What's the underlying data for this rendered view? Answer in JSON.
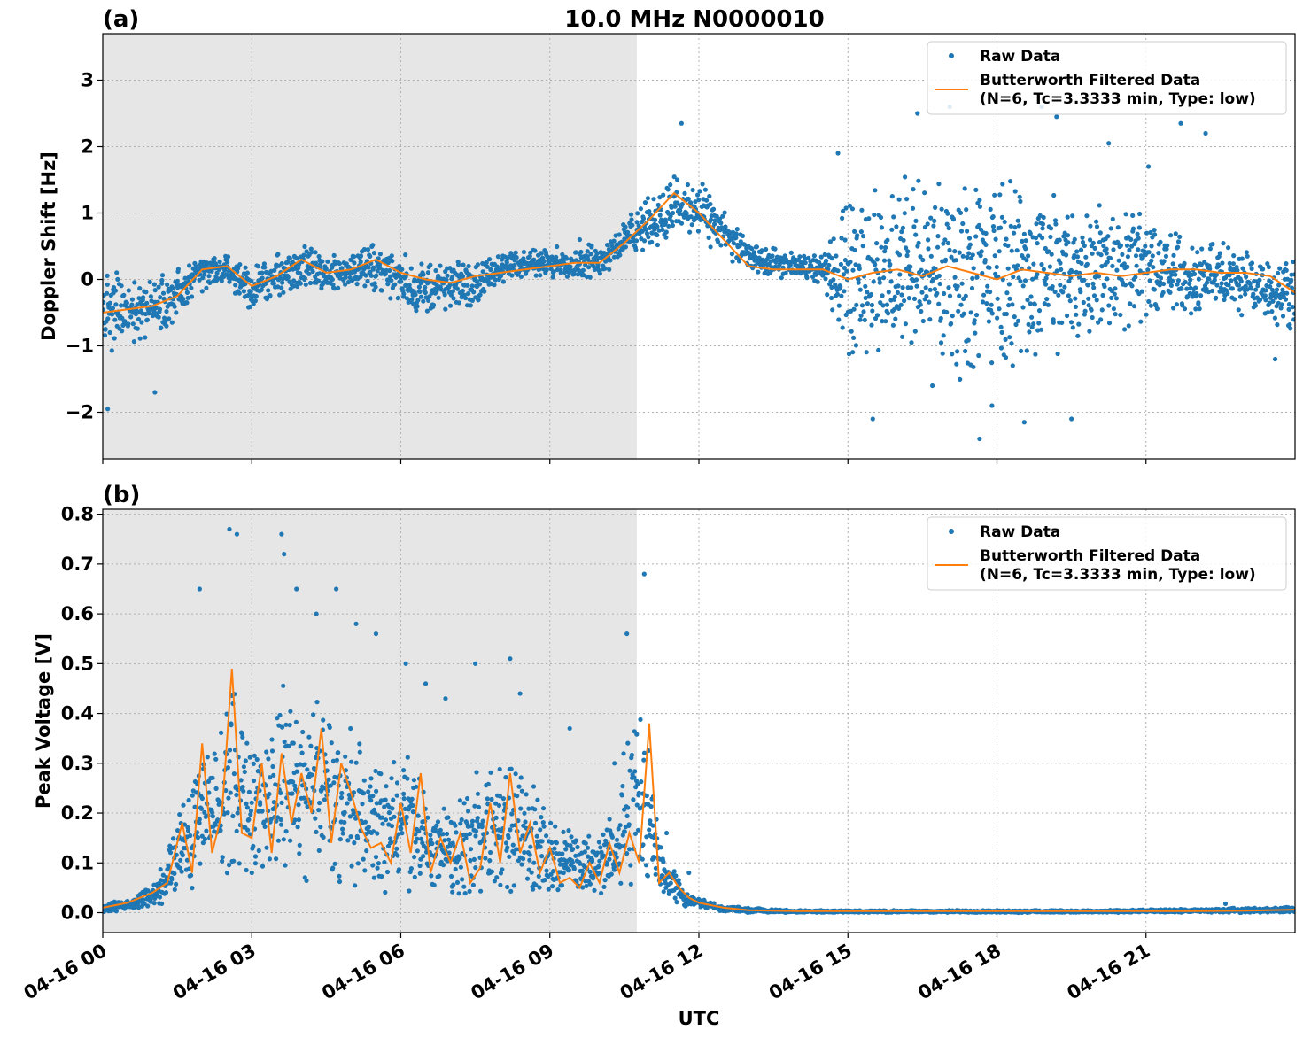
{
  "figure": {
    "title": "10.0 MHz N0000010",
    "xlabel": "UTC",
    "x_tick_labels": [
      "04-16 00",
      "04-16 03",
      "04-16 06",
      "04-16 09",
      "04-16 12",
      "04-16 15",
      "04-16 18",
      "04-16 21"
    ],
    "colors": {
      "raw": "#1f77b4",
      "filtered": "#ff7f0e",
      "night_shade": "#e6e6e6",
      "grid": "#b0b0b0"
    }
  },
  "chart_data": [
    {
      "type": "scatter",
      "panel_label": "(a)",
      "ylabel": "Doppler Shift [Hz]",
      "xlim_hours": [
        0,
        24
      ],
      "ylim": [
        -2.7,
        3.7
      ],
      "y_ticks": [
        -2,
        -1,
        0,
        1,
        2,
        3
      ],
      "y_tick_labels": [
        "−2",
        "−1",
        "0",
        "1",
        "2",
        "3"
      ],
      "grid": true,
      "legend_position": "top-right",
      "shaded_region_hours": [
        0,
        10.75
      ],
      "series": [
        {
          "name": "Raw Data",
          "kind": "scatter",
          "band_x_hours": [
            0,
            0.5,
            1,
            1.5,
            2,
            2.5,
            3,
            3.5,
            4,
            4.5,
            5,
            5.5,
            6,
            6.5,
            7,
            7.5,
            8,
            8.5,
            9,
            9.5,
            10,
            10.5,
            11,
            11.5,
            12,
            12.5,
            13,
            13.5,
            14,
            14.5,
            15,
            15.5,
            16,
            16.5,
            17,
            17.5,
            18,
            18.5,
            19,
            19.5,
            20,
            20.5,
            21,
            21.5,
            22,
            22.5,
            23,
            23.5,
            24
          ],
          "band_low": [
            -1.2,
            -1.0,
            -0.9,
            -0.7,
            -0.2,
            -0.1,
            -0.5,
            -0.3,
            -0.2,
            -0.3,
            -0.1,
            -0.2,
            -0.4,
            -0.6,
            -0.5,
            -0.4,
            -0.1,
            0.0,
            0.0,
            0.0,
            0.0,
            0.3,
            0.4,
            0.6,
            0.6,
            0.3,
            0.1,
            0.0,
            0.0,
            -0.1,
            -1.3,
            -1.2,
            -1.3,
            -1.4,
            -1.5,
            -1.6,
            -1.5,
            -1.4,
            -1.3,
            -1.2,
            -1.0,
            -0.8,
            -0.7,
            -0.6,
            -0.6,
            -0.5,
            -0.6,
            -0.7,
            -0.8
          ],
          "band_high": [
            0.2,
            0.1,
            0.1,
            0.2,
            0.4,
            0.4,
            0.2,
            0.4,
            0.6,
            0.4,
            0.4,
            0.6,
            0.4,
            0.3,
            0.3,
            0.3,
            0.4,
            0.5,
            0.5,
            0.5,
            0.6,
            0.9,
            1.3,
            1.6,
            1.5,
            1.1,
            0.6,
            0.5,
            0.4,
            0.4,
            1.4,
            1.5,
            1.6,
            1.7,
            1.6,
            1.7,
            1.7,
            1.6,
            1.6,
            1.5,
            1.5,
            1.3,
            1.0,
            0.8,
            0.7,
            0.6,
            0.5,
            0.4,
            0.4
          ],
          "points": [
            [
              0.1,
              -1.95
            ],
            [
              1.05,
              -1.7
            ],
            [
              9.6,
              0.6
            ],
            [
              11.65,
              2.35
            ],
            [
              14.8,
              1.9
            ],
            [
              15.5,
              -2.1
            ],
            [
              16.4,
              2.5
            ],
            [
              16.7,
              -1.6
            ],
            [
              17.05,
              2.6
            ],
            [
              17.65,
              -2.4
            ],
            [
              17.9,
              -1.9
            ],
            [
              18.55,
              -2.15
            ],
            [
              18.9,
              2.6
            ],
            [
              19.2,
              2.45
            ],
            [
              19.5,
              -2.1
            ],
            [
              20.25,
              2.05
            ],
            [
              21.05,
              1.7
            ],
            [
              21.7,
              2.35
            ],
            [
              22.2,
              2.2
            ],
            [
              23.6,
              -1.2
            ]
          ]
        },
        {
          "name": "Butterworth Filtered Data\n(N=6, Tc=3.3333 min, Type: low)",
          "kind": "line",
          "x_hours": [
            0,
            0.5,
            1,
            1.5,
            2,
            2.5,
            3,
            3.5,
            4,
            4.5,
            5,
            5.5,
            6,
            6.5,
            7,
            7.5,
            8,
            8.5,
            9,
            9.5,
            10,
            10.5,
            11,
            11.5,
            12,
            12.5,
            13,
            13.5,
            14,
            14.5,
            15,
            15.5,
            16,
            16.5,
            17,
            17.5,
            18,
            18.5,
            19,
            19.5,
            20,
            20.5,
            21,
            21.5,
            22,
            22.5,
            23,
            23.5,
            24
          ],
          "y": [
            -0.5,
            -0.45,
            -0.4,
            -0.25,
            0.15,
            0.2,
            -0.1,
            0.05,
            0.3,
            0.1,
            0.15,
            0.3,
            0.1,
            0.0,
            -0.05,
            0.05,
            0.1,
            0.15,
            0.2,
            0.25,
            0.25,
            0.55,
            0.9,
            1.3,
            1.0,
            0.6,
            0.2,
            0.15,
            0.15,
            0.15,
            0.0,
            0.1,
            0.15,
            0.05,
            0.2,
            0.1,
            0.0,
            0.15,
            0.1,
            0.05,
            0.1,
            0.05,
            0.1,
            0.15,
            0.15,
            0.1,
            0.1,
            0.05,
            -0.2
          ]
        }
      ]
    },
    {
      "type": "scatter",
      "panel_label": "(b)",
      "ylabel": "Peak Voltage [V]",
      "xlim_hours": [
        0,
        24
      ],
      "ylim": [
        -0.04,
        0.81
      ],
      "y_ticks": [
        0.0,
        0.1,
        0.2,
        0.3,
        0.4,
        0.5,
        0.6,
        0.7,
        0.8
      ],
      "y_tick_labels": [
        "0.0",
        "0.1",
        "0.2",
        "0.3",
        "0.4",
        "0.5",
        "0.6",
        "0.7",
        "0.8"
      ],
      "grid": true,
      "legend_position": "top-right",
      "shaded_region_hours": [
        0,
        10.75
      ],
      "series": [
        {
          "name": "Raw Data",
          "kind": "scatter",
          "band_x_hours": [
            0,
            0.5,
            1,
            1.3,
            1.6,
            2.0,
            2.3,
            2.6,
            3.0,
            3.3,
            3.6,
            4.0,
            4.3,
            4.6,
            5.0,
            5.3,
            5.6,
            6.0,
            6.3,
            6.6,
            7.0,
            7.3,
            7.6,
            8.0,
            8.3,
            8.6,
            9.0,
            9.3,
            9.6,
            10.0,
            10.3,
            10.6,
            10.9,
            11.2,
            11.5,
            11.8,
            12.0,
            12.5,
            13.0,
            14.0,
            16.0,
            18.0,
            20.0,
            22.0,
            23.0,
            24.0
          ],
          "band_low": [
            0.0,
            0.0,
            0.01,
            0.02,
            0.03,
            0.05,
            0.06,
            0.07,
            0.06,
            0.07,
            0.05,
            0.06,
            0.06,
            0.05,
            0.05,
            0.04,
            0.04,
            0.03,
            0.03,
            0.03,
            0.02,
            0.02,
            0.02,
            0.02,
            0.02,
            0.02,
            0.02,
            0.02,
            0.02,
            0.03,
            0.03,
            0.04,
            0.05,
            0.03,
            0.02,
            0.01,
            0.01,
            0.0,
            0.0,
            0.0,
            0.0,
            0.0,
            0.0,
            0.0,
            0.0,
            0.0
          ],
          "band_high": [
            0.02,
            0.03,
            0.06,
            0.12,
            0.25,
            0.38,
            0.35,
            0.5,
            0.35,
            0.4,
            0.48,
            0.42,
            0.45,
            0.42,
            0.38,
            0.32,
            0.3,
            0.35,
            0.3,
            0.22,
            0.22,
            0.25,
            0.32,
            0.3,
            0.33,
            0.3,
            0.22,
            0.2,
            0.15,
            0.18,
            0.22,
            0.4,
            0.45,
            0.15,
            0.09,
            0.04,
            0.03,
            0.015,
            0.01,
            0.005,
            0.005,
            0.005,
            0.005,
            0.008,
            0.01,
            0.012
          ],
          "points": [
            [
              1.95,
              0.65
            ],
            [
              2.55,
              0.77
            ],
            [
              2.7,
              0.76
            ],
            [
              3.6,
              0.76
            ],
            [
              3.65,
              0.72
            ],
            [
              3.9,
              0.65
            ],
            [
              4.3,
              0.6
            ],
            [
              4.7,
              0.65
            ],
            [
              5.1,
              0.58
            ],
            [
              5.5,
              0.56
            ],
            [
              6.1,
              0.5
            ],
            [
              6.5,
              0.46
            ],
            [
              6.9,
              0.43
            ],
            [
              7.5,
              0.5
            ],
            [
              8.2,
              0.51
            ],
            [
              8.4,
              0.44
            ],
            [
              9.4,
              0.37
            ],
            [
              10.3,
              0.3
            ],
            [
              10.55,
              0.56
            ],
            [
              10.9,
              0.68
            ],
            [
              11.35,
              0.16
            ],
            [
              11.8,
              0.08
            ],
            [
              22.6,
              0.018
            ]
          ]
        },
        {
          "name": "Butterworth Filtered Data\n(N=6, Tc=3.3333 min, Type: low)",
          "kind": "line",
          "x_hours": [
            0,
            0.5,
            1,
            1.3,
            1.6,
            1.8,
            2.0,
            2.2,
            2.4,
            2.6,
            2.8,
            3.0,
            3.2,
            3.4,
            3.6,
            3.8,
            4.0,
            4.2,
            4.4,
            4.6,
            4.8,
            5.0,
            5.2,
            5.4,
            5.6,
            5.8,
            6.0,
            6.2,
            6.4,
            6.6,
            6.8,
            7.0,
            7.2,
            7.4,
            7.6,
            7.8,
            8.0,
            8.2,
            8.4,
            8.6,
            8.8,
            9.0,
            9.2,
            9.4,
            9.6,
            9.8,
            10.0,
            10.2,
            10.4,
            10.6,
            10.8,
            11.0,
            11.2,
            11.4,
            11.6,
            11.8,
            12.0,
            12.5,
            13.0,
            14.0,
            16.0,
            18.0,
            20.0,
            22.0,
            23.0,
            24.0
          ],
          "y": [
            0.01,
            0.02,
            0.04,
            0.06,
            0.18,
            0.08,
            0.34,
            0.12,
            0.2,
            0.49,
            0.16,
            0.15,
            0.3,
            0.12,
            0.32,
            0.18,
            0.28,
            0.2,
            0.37,
            0.14,
            0.3,
            0.24,
            0.17,
            0.13,
            0.14,
            0.1,
            0.22,
            0.12,
            0.28,
            0.08,
            0.15,
            0.1,
            0.16,
            0.06,
            0.09,
            0.22,
            0.1,
            0.28,
            0.12,
            0.18,
            0.08,
            0.13,
            0.06,
            0.07,
            0.05,
            0.1,
            0.06,
            0.14,
            0.08,
            0.16,
            0.1,
            0.38,
            0.06,
            0.08,
            0.05,
            0.03,
            0.02,
            0.01,
            0.005,
            0.003,
            0.003,
            0.003,
            0.003,
            0.003,
            0.004,
            0.006
          ]
        }
      ]
    }
  ],
  "legend": {
    "raw_label": "Raw Data",
    "filtered_line1": "Butterworth Filtered Data",
    "filtered_line2": "(N=6, Tc=3.3333 min, Type: low)"
  }
}
